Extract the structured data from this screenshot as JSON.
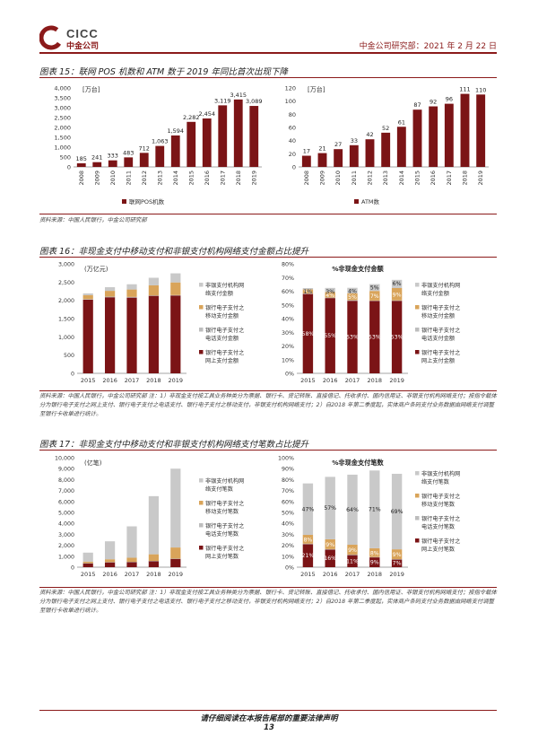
{
  "header": {
    "brand_en": "CICC",
    "brand_cn": "中金公司",
    "right_text": "中金公司研究部：2021 年 2 月 22 日"
  },
  "colors": {
    "dark_red": "#7B1416",
    "orange": "#D9A45A",
    "light_gray": "#BDBDBD",
    "mid_gray": "#C9C9C9"
  },
  "fig15": {
    "title": "图表 15：联网 POS 机数和 ATM 数于 2019 年同比首次出现下降",
    "source": "资料来源：中国人民银行，中金公司研究部"
  },
  "fig16": {
    "title": "图表 16：非现金支付中移动支付和非银支付机构网络支付金额占比提升",
    "source": "资料来源：中国人民银行，中金公司研究部 注：1）非现金支付按工具业务种类分为票据、银行卡、贷记转账、直接借记、托收承付、国内信用证、非银支付机构网络支付；按指令载体分为银行电子支付之网上支付、银行电子支付之电话支付、银行电子支付之移动支付，非银支付机构网络支付；2）自2018 年第二季度起，实体商户条码支付业务数据由网络支付调整至银行卡收单进行统计。"
  },
  "fig17": {
    "title": "图表 17：非现金支付中移动支付和非银支付机构网络支付笔数占比提升",
    "source": "资料来源：中国人民银行，中金公司研究部 注：1）非现金支付按工具业务种类分为票据、银行卡、贷记转账、直接借记、托收承付、国内信用证、非银支付机构网络支付；按指令载体分为银行电子支付之网上支付、银行电子支付之电话支付、银行电子支付之移动支付，非银支付机构网络支付；2）自2018 年第二季度起，实体商户条码支付业务数据由网络支付调整至银行卡收单进行统计。"
  },
  "footer": {
    "note": "请仔细阅读在本报告尾部的重要法律声明",
    "page": "13"
  },
  "chart_data": [
    {
      "id": "pos",
      "type": "bar",
      "unit_label": "[万台]",
      "categories": [
        "2008",
        "2009",
        "2010",
        "2011",
        "2012",
        "2013",
        "2014",
        "2015",
        "2016",
        "2017",
        "2018",
        "2019"
      ],
      "series": [
        {
          "name": "联网POS机数",
          "values": [
            185,
            241,
            333,
            483,
            712,
            1063,
            1594,
            2282,
            2454,
            3119,
            3415,
            3089
          ]
        }
      ],
      "ylim": [
        0,
        4000
      ],
      "yticks": [
        "0",
        "500",
        "1,000",
        "1,500",
        "2,000",
        "2,500",
        "3,000",
        "3,500",
        "4,000"
      ],
      "data_labels": [
        "185",
        "241",
        "333",
        "483",
        "712",
        "1,063",
        "1,594",
        "2,282",
        "2,454",
        "3,119",
        "3,415",
        "3,089"
      ],
      "legend": "bottom"
    },
    {
      "id": "atm",
      "type": "bar",
      "unit_label": "[万台]",
      "categories": [
        "2008",
        "2009",
        "2010",
        "2011",
        "2012",
        "2013",
        "2014",
        "2015",
        "2016",
        "2017",
        "2018",
        "2019"
      ],
      "series": [
        {
          "name": "ATM数",
          "values": [
            17,
            21,
            27,
            33,
            42,
            52,
            61,
            87,
            92,
            96,
            111,
            110
          ]
        }
      ],
      "ylim": [
        0,
        120
      ],
      "yticks": [
        "0",
        "20",
        "40",
        "60",
        "80",
        "100",
        "120"
      ],
      "data_labels": [
        "17",
        "21",
        "27",
        "33",
        "42",
        "52",
        "61",
        "87",
        "92",
        "96",
        "111",
        "110"
      ],
      "legend": "bottom"
    },
    {
      "id": "amount_abs",
      "type": "bar",
      "stacked": true,
      "unit_label": "(万亿元)",
      "categories": [
        "2015",
        "2016",
        "2017",
        "2018",
        "2019"
      ],
      "series": [
        {
          "name": "银行电子支付之网上支付金额",
          "values": [
            2018,
            2085,
            2075,
            2126,
            2134
          ]
        },
        {
          "name": "银行电子支付之电话支付金额",
          "values": [
            14,
            17,
            19,
            8,
            10
          ]
        },
        {
          "name": "银行电子支付之移动支付金额",
          "values": [
            108,
            158,
            203,
            277,
            347
          ]
        },
        {
          "name": "非银支付机构网络支付金额",
          "values": [
            50,
            100,
            143,
            208,
            249
          ]
        }
      ],
      "ylim": [
        0,
        3000
      ],
      "yticks": [
        "0",
        "500",
        "1,000",
        "1,500",
        "2,000",
        "2,500",
        "3,000"
      ],
      "legend": "right"
    },
    {
      "id": "amount_pct",
      "type": "bar",
      "stacked": true,
      "title": "%非现金支付金额",
      "categories": [
        "2015",
        "2016",
        "2017",
        "2018",
        "2019"
      ],
      "series": [
        {
          "name": "银行电子支付之网上支付金额",
          "values": [
            58,
            55,
            53,
            53,
            53
          ]
        },
        {
          "name": "银行电子支付之电话支付金额",
          "values": [
            0.3,
            0.4,
            0.5,
            0.2,
            0.3
          ]
        },
        {
          "name": "银行电子支付之移动支付金额",
          "values": [
            3,
            4,
            5,
            7,
            9
          ]
        },
        {
          "name": "非银支付机构网络支付金额",
          "values": [
            1,
            3,
            4,
            5,
            6
          ]
        }
      ],
      "top_labels": [
        "1%",
        "3%",
        "4%",
        "5%",
        "6%"
      ],
      "mid_labels": [
        "3%",
        "4%",
        "5%",
        "7%",
        "9%"
      ],
      "bottom_labels": [
        "58%",
        "55%",
        "53%",
        "53%",
        "53%"
      ],
      "ylim": [
        0,
        80
      ],
      "yticks": [
        "0%",
        "10%",
        "20%",
        "30%",
        "40%",
        "50%",
        "60%",
        "70%",
        "80%"
      ],
      "legend": "right"
    },
    {
      "id": "count_abs",
      "type": "bar",
      "stacked": true,
      "unit_label": "(亿笔)",
      "categories": [
        "2015",
        "2016",
        "2017",
        "2018",
        "2019"
      ],
      "series": [
        {
          "name": "银行电子支付之网上支付笔数",
          "values": [
            363,
            462,
            485,
            570,
            782
          ]
        },
        {
          "name": "银行电子支付之电话支付笔数",
          "values": [
            3,
            3,
            2,
            2,
            2
          ]
        },
        {
          "name": "银行电子支付之移动支付笔数",
          "values": [
            139,
            257,
            376,
            606,
            1014
          ]
        },
        {
          "name": "非银支付机构网络支付笔数",
          "values": [
            822,
            1640,
            2867,
            5307,
            7200
          ]
        }
      ],
      "ylim": [
        0,
        10000
      ],
      "yticks": [
        "0",
        "1,000",
        "2,000",
        "3,000",
        "4,000",
        "5,000",
        "6,000",
        "7,000",
        "8,000",
        "9,000",
        "10,000"
      ],
      "legend": "right"
    },
    {
      "id": "count_pct",
      "type": "bar",
      "stacked": true,
      "title": "%非现金支付笔数",
      "categories": [
        "2015",
        "2016",
        "2017",
        "2018",
        "2019"
      ],
      "series": [
        {
          "name": "银行电子支付之网上支付笔数",
          "values": [
            21,
            16,
            11,
            9,
            7
          ]
        },
        {
          "name": "银行电子支付之电话支付笔数",
          "values": [
            0.5,
            0.5,
            0.5,
            0.3,
            0.3
          ]
        },
        {
          "name": "银行电子支付之移动支付笔数",
          "values": [
            8,
            9,
            9,
            8,
            9
          ]
        },
        {
          "name": "非银支付机构网络支付笔数",
          "values": [
            47,
            57,
            64,
            71,
            69
          ]
        }
      ],
      "top_labels": [
        "47%",
        "57%",
        "64%",
        "71%",
        "69%"
      ],
      "mid_labels": [
        "8%",
        "9%",
        "9%",
        "8%",
        "9%"
      ],
      "bottom_labels": [
        "21%",
        "16%",
        "11%",
        "9%",
        "7%"
      ],
      "ylim": [
        0,
        100
      ],
      "yticks": [
        "0%",
        "10%",
        "20%",
        "30%",
        "40%",
        "50%",
        "60%",
        "70%",
        "80%",
        "90%",
        "100%"
      ],
      "legend": "right"
    }
  ],
  "legends": {
    "fig16": [
      "非银支付机构网络支付金额",
      "银行电子支付之移动支付金额",
      "银行电子支付之电话支付金额",
      "银行电子支付之网上支付金额"
    ],
    "fig17": [
      "非银支付机构网络支付笔数",
      "银行电子支付之移动支付笔数",
      "银行电子支付之电话支付笔数",
      "银行电子支付之网上支付笔数"
    ]
  }
}
